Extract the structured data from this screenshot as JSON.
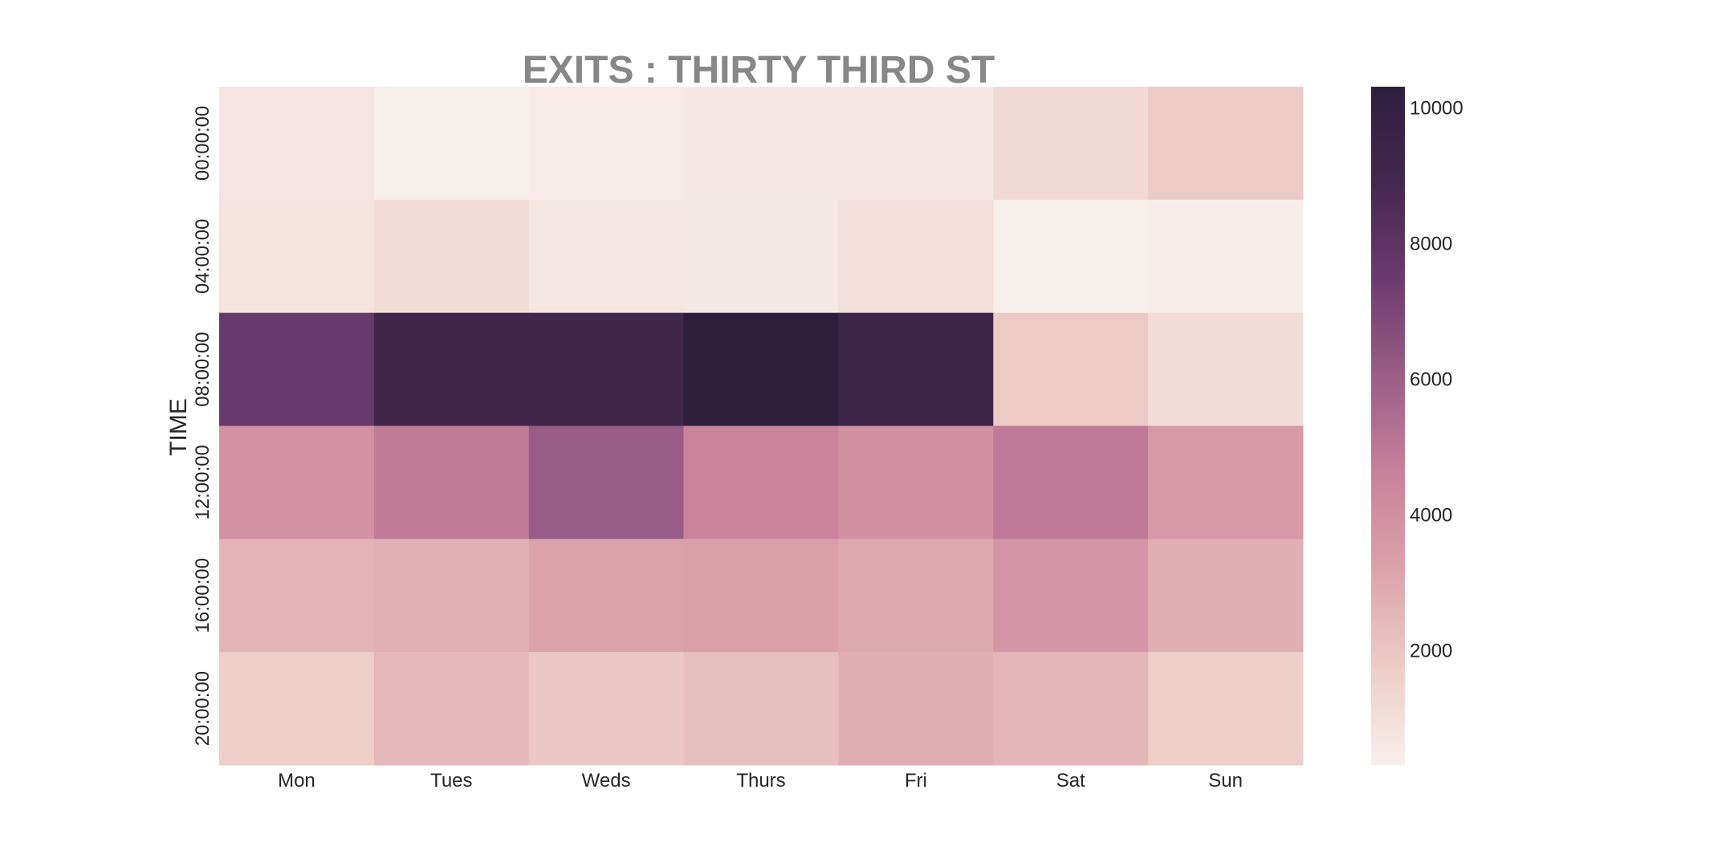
{
  "chart_data": {
    "type": "heatmap",
    "title": "EXITS : THIRTY THIRD ST",
    "xlabel": "",
    "ylabel": "TIME",
    "x_categories": [
      "Mon",
      "Tues",
      "Weds",
      "Thurs",
      "Fri",
      "Sat",
      "Sun"
    ],
    "y_categories": [
      "00:00:00",
      "04:00:00",
      "08:00:00",
      "12:00:00",
      "16:00:00",
      "20:00:00"
    ],
    "values": [
      [
        700,
        300,
        450,
        600,
        600,
        1200,
        1800
      ],
      [
        800,
        1100,
        600,
        550,
        1000,
        300,
        350
      ],
      [
        7600,
        9100,
        9100,
        10300,
        9400,
        1800,
        1100
      ],
      [
        3900,
        4800,
        6100,
        4500,
        4000,
        4900,
        3600
      ],
      [
        2600,
        2700,
        3200,
        3300,
        3000,
        3700,
        2800
      ],
      [
        1700,
        2400,
        1900,
        2200,
        2800,
        2500,
        1700
      ]
    ],
    "colorbar": {
      "vmin": 300,
      "vmax": 10300,
      "ticks": [
        2000,
        4000,
        6000,
        8000,
        10000
      ]
    },
    "colormap": [
      "#f7efec",
      "#edcdc8",
      "#dca3ac",
      "#c8829b",
      "#9c5e87",
      "#6c3b6e",
      "#45284f",
      "#2d1e3e"
    ],
    "grid": false,
    "legend": "colorbar-right"
  }
}
